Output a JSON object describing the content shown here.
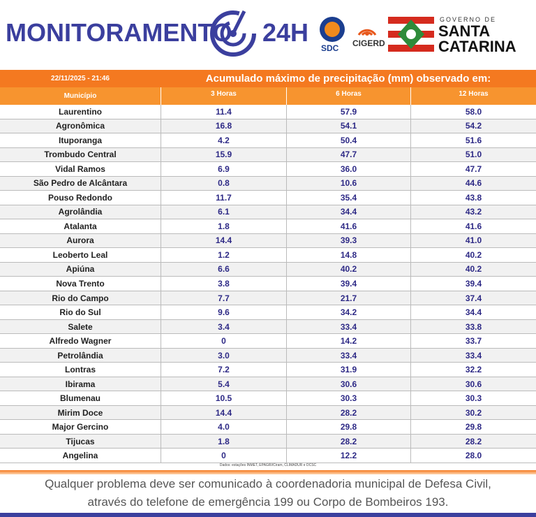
{
  "header": {
    "brand": "MONITORAMENTO",
    "brand_suffix": "24H",
    "sdc": "SDC",
    "cigerd": "CIGERD",
    "gov_top": "GOVERNO DE",
    "gov_line1": "SANTA",
    "gov_line2": "CATARINA"
  },
  "table": {
    "timestamp": "22/11/2025 - 21:46",
    "title": "Acumulado máximo de precipitação (mm) observado em:",
    "columns": [
      "Município",
      "3 Horas",
      "6 Horas",
      "12 Horas"
    ],
    "rows": [
      [
        "Laurentino",
        "11.4",
        "57.9",
        "58.0"
      ],
      [
        "Agronômica",
        "16.8",
        "54.1",
        "54.2"
      ],
      [
        "Ituporanga",
        "4.2",
        "50.4",
        "51.6"
      ],
      [
        "Trombudo Central",
        "15.9",
        "47.7",
        "51.0"
      ],
      [
        "Vidal Ramos",
        "6.9",
        "36.0",
        "47.7"
      ],
      [
        "São Pedro de Alcântara",
        "0.8",
        "10.6",
        "44.6"
      ],
      [
        "Pouso Redondo",
        "11.7",
        "35.4",
        "43.8"
      ],
      [
        "Agrolândia",
        "6.1",
        "34.4",
        "43.2"
      ],
      [
        "Atalanta",
        "1.8",
        "41.6",
        "41.6"
      ],
      [
        "Aurora",
        "14.4",
        "39.3",
        "41.0"
      ],
      [
        "Leoberto Leal",
        "1.2",
        "14.8",
        "40.2"
      ],
      [
        "Apiúna",
        "6.6",
        "40.2",
        "40.2"
      ],
      [
        "Nova Trento",
        "3.8",
        "39.4",
        "39.4"
      ],
      [
        "Rio do Campo",
        "7.7",
        "21.7",
        "37.4"
      ],
      [
        "Rio do Sul",
        "9.6",
        "34.2",
        "34.4"
      ],
      [
        "Salete",
        "3.4",
        "33.4",
        "33.8"
      ],
      [
        "Alfredo Wagner",
        "0",
        "14.2",
        "33.7"
      ],
      [
        "Petrolândia",
        "3.0",
        "33.4",
        "33.4"
      ],
      [
        "Lontras",
        "7.2",
        "31.9",
        "32.2"
      ],
      [
        "Ibirama",
        "5.4",
        "30.6",
        "30.6"
      ],
      [
        "Blumenau",
        "10.5",
        "30.3",
        "30.3"
      ],
      [
        "Mirim Doce",
        "14.4",
        "28.2",
        "30.2"
      ],
      [
        "Major Gercino",
        "4.0",
        "29.8",
        "29.8"
      ],
      [
        "Tijucas",
        "1.8",
        "28.2",
        "28.2"
      ],
      [
        "Angelina",
        "0",
        "12.2",
        "28.0"
      ]
    ],
    "source": "Dados: estações INMET, EPAGRI/Ciram, CLIMADUR e DCSC"
  },
  "footer": {
    "line1": "Qualquer problema deve ser comunicado à coordenadoria municipal de Defesa Civil,",
    "line2": "através do telefone de emergência 199 ou Corpo de Bombeiros 193."
  }
}
